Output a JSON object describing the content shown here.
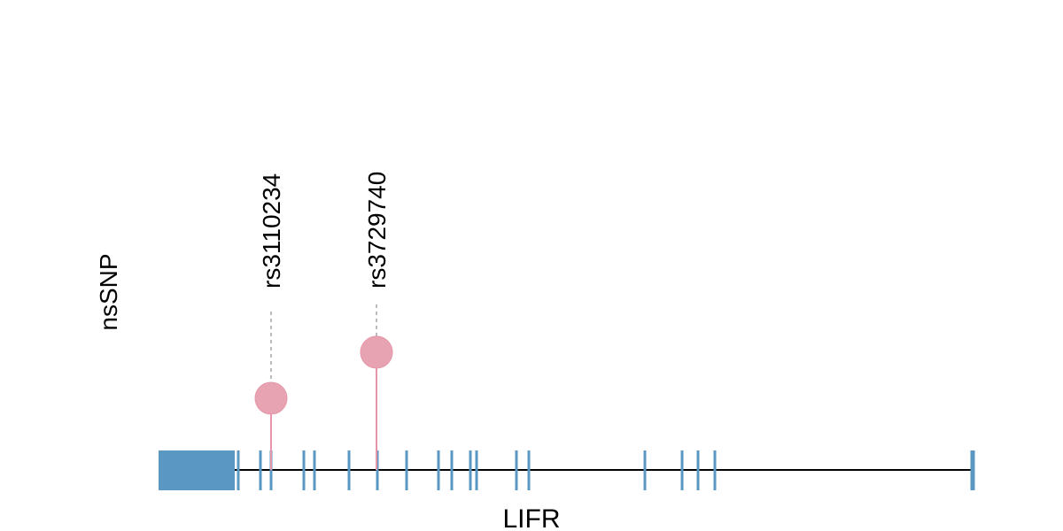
{
  "chart_data": {
    "type": "lollipop",
    "ylabel": "nsSNP",
    "xlabel": "LIFR",
    "colors": {
      "exon": "#5b97c3",
      "snp": "#e8a3b2",
      "snp_stroke": "#e596aa",
      "backbone": "#000000",
      "connector": "#bbbbbb"
    },
    "snps": [
      {
        "label": "rs3110234"
      },
      {
        "label": "rs3729740"
      }
    ]
  }
}
